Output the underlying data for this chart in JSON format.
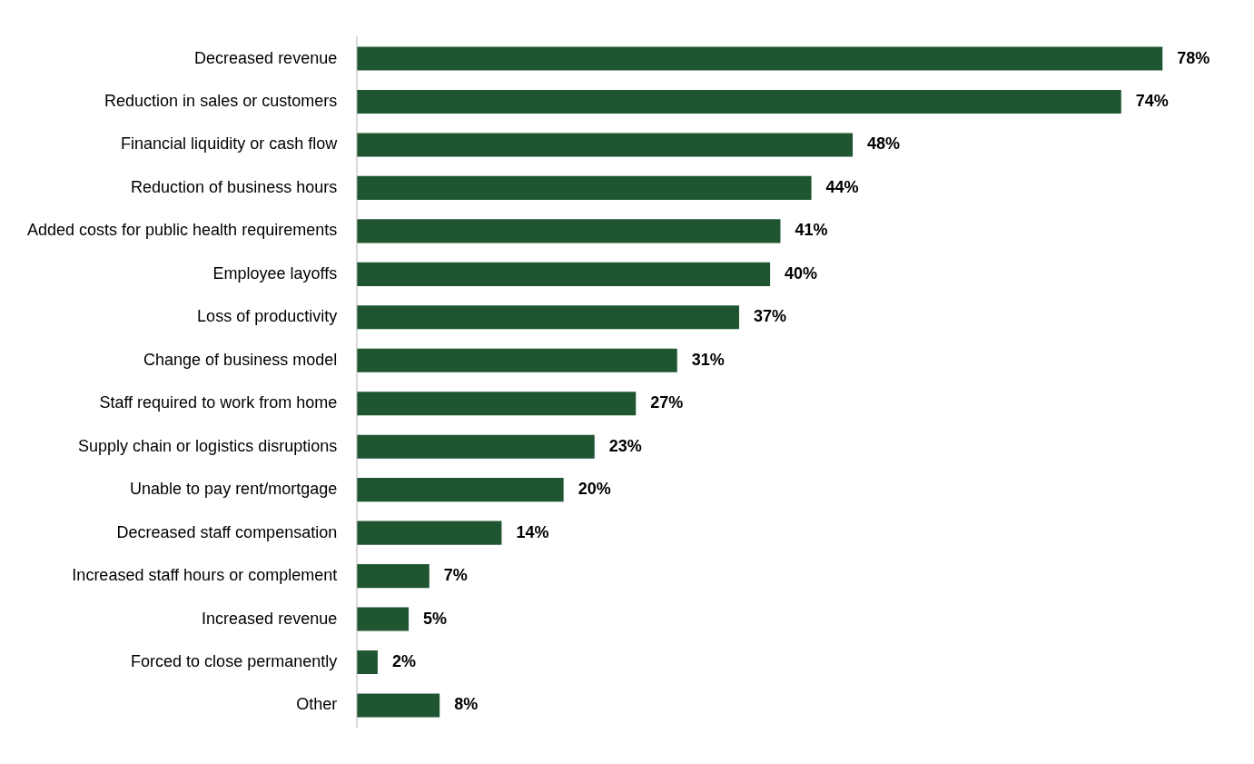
{
  "chart_data": {
    "type": "bar",
    "orientation": "horizontal",
    "categories": [
      "Decreased revenue",
      "Reduction in sales or customers",
      "Financial liquidity or cash flow",
      "Reduction of business hours",
      "Added costs for public health requirements",
      "Employee layoffs",
      "Loss of productivity",
      "Change of business model",
      "Staff required to work from home",
      "Supply chain or logistics disruptions",
      "Unable to pay rent/mortgage",
      "Decreased staff compensation",
      "Increased staff hours or complement",
      "Increased revenue",
      "Forced to close permanently",
      "Other"
    ],
    "values": [
      78,
      74,
      48,
      44,
      41,
      40,
      37,
      31,
      27,
      23,
      20,
      14,
      7,
      5,
      2,
      8
    ],
    "value_labels": [
      "78%",
      "74%",
      "48%",
      "44%",
      "41%",
      "40%",
      "37%",
      "31%",
      "27%",
      "23%",
      "20%",
      "14%",
      "7%",
      "5%",
      "2%",
      "8%"
    ],
    "color": "#1f5631",
    "grid": false,
    "legend": false,
    "tick_labels": "y"
  }
}
